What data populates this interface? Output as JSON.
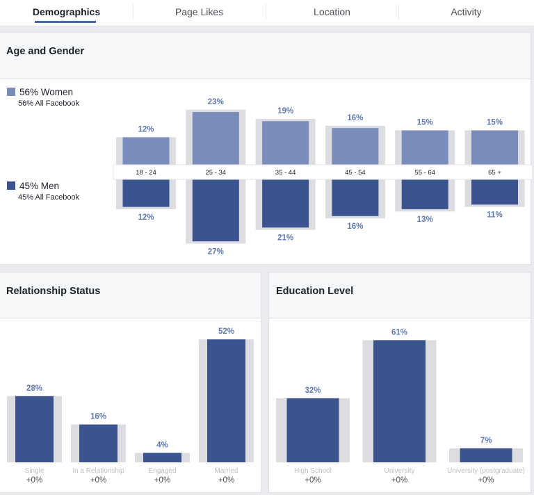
{
  "tabs": [
    {
      "label": "Demographics",
      "active": true
    },
    {
      "label": "Page Likes",
      "active": false
    },
    {
      "label": "Location",
      "active": false
    },
    {
      "label": "Activity",
      "active": false
    }
  ],
  "colors": {
    "women": "#7a8dba",
    "men": "#3b5490",
    "shadow": "#dcdde1",
    "label_blue": "#5f79b0",
    "axis_text": "#90949c"
  },
  "age_gender": {
    "title": "Age and Gender",
    "legend": {
      "women": {
        "label": "56% Women",
        "sub": "56% All Facebook"
      },
      "men": {
        "label": "45% Men",
        "sub": "45% All Facebook"
      }
    }
  },
  "relationship": {
    "title": "Relationship Status"
  },
  "education": {
    "title": "Education Level"
  },
  "chart_data": [
    {
      "type": "bar",
      "title": "Age and Gender",
      "categories": [
        "18 - 24",
        "25 - 34",
        "35 - 44",
        "45 - 54",
        "55 - 64",
        "65 +"
      ],
      "series": [
        {
          "name": "56% Women",
          "values": [
            12,
            23,
            19,
            16,
            15,
            15
          ],
          "labels": [
            "12%",
            "23%",
            "19%",
            "16%",
            "15%",
            "15%"
          ]
        },
        {
          "name": "45% Men",
          "values": [
            12,
            27,
            21,
            16,
            13,
            11
          ],
          "labels": [
            "12%",
            "27%",
            "21%",
            "16%",
            "13%",
            "11%"
          ]
        }
      ],
      "benchmark": {
        "women": [
          12,
          24,
          20,
          17,
          15,
          15
        ],
        "men": [
          13,
          28,
          22,
          17,
          14,
          12
        ]
      }
    },
    {
      "type": "bar",
      "title": "Relationship Status",
      "categories": [
        "Single",
        "In a Relationship",
        "Engaged",
        "Married"
      ],
      "values": [
        28,
        16,
        4,
        52
      ],
      "labels": [
        "28%",
        "16%",
        "4%",
        "52%"
      ],
      "changes": [
        "+0%",
        "+0%",
        "+0%",
        "+0%"
      ],
      "benchmark": [
        28,
        16,
        4,
        52
      ]
    },
    {
      "type": "bar",
      "title": "Education Level",
      "categories": [
        "High School",
        "University",
        "University (postgraduate)"
      ],
      "values": [
        32,
        61,
        7
      ],
      "labels": [
        "32%",
        "61%",
        "7%"
      ],
      "changes": [
        "+0%",
        "+0%",
        "+0%"
      ],
      "benchmark": [
        32,
        61,
        7
      ]
    }
  ]
}
